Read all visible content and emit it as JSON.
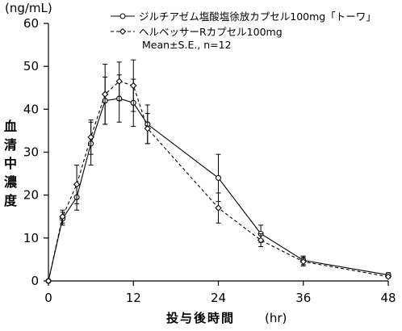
{
  "chart_data": {
    "type": "line",
    "y_unit": "(ng/mL)",
    "ylabel_chars": [
      "血",
      "清",
      "中",
      "濃",
      "度"
    ],
    "xlabel": "投与後時間",
    "x_unit": "(hr)",
    "xlim": [
      0,
      48
    ],
    "ylim": [
      0,
      60
    ],
    "x_ticks": [
      0,
      12,
      24,
      36,
      48
    ],
    "y_ticks": [
      0,
      10,
      20,
      30,
      40,
      50,
      60
    ],
    "annotation": "Mean±S.E., n=12",
    "series": [
      {
        "name": "ジルチアゼム塩酸塩徐放カプセル100mg「トーワ」",
        "style": "solid",
        "marker": "circle",
        "color": "#000000",
        "points": [
          {
            "x": 0,
            "y": 0,
            "err": 0
          },
          {
            "x": 2,
            "y": 14.5,
            "err": 1.5
          },
          {
            "x": 4,
            "y": 19.5,
            "err": 3.0
          },
          {
            "x": 6,
            "y": 32.0,
            "err": 5.0
          },
          {
            "x": 8,
            "y": 42.0,
            "err": 5.5
          },
          {
            "x": 10,
            "y": 42.5,
            "err": 5.5
          },
          {
            "x": 12,
            "y": 41.5,
            "err": 5.5
          },
          {
            "x": 14,
            "y": 36.5,
            "err": 4.5
          },
          {
            "x": 24,
            "y": 24.0,
            "err": 5.5
          },
          {
            "x": 30,
            "y": 11.0,
            "err": 2.0
          },
          {
            "x": 36,
            "y": 4.8,
            "err": 1.0
          },
          {
            "x": 48,
            "y": 1.4,
            "err": 0.5
          }
        ]
      },
      {
        "name": "ヘルベッサーRカプセル100mg",
        "style": "dashed",
        "marker": "diamond",
        "color": "#000000",
        "points": [
          {
            "x": 0,
            "y": 0,
            "err": 0
          },
          {
            "x": 2,
            "y": 15.0,
            "err": 1.5
          },
          {
            "x": 4,
            "y": 22.5,
            "err": 4.5
          },
          {
            "x": 6,
            "y": 33.5,
            "err": 4.0
          },
          {
            "x": 8,
            "y": 43.5,
            "err": 7.0
          },
          {
            "x": 10,
            "y": 46.5,
            "err": 4.5
          },
          {
            "x": 12,
            "y": 45.5,
            "err": 6.0
          },
          {
            "x": 14,
            "y": 35.5,
            "err": 3.5
          },
          {
            "x": 24,
            "y": 17.0,
            "err": 3.5
          },
          {
            "x": 30,
            "y": 9.5,
            "err": 1.5
          },
          {
            "x": 36,
            "y": 4.5,
            "err": 1.0
          },
          {
            "x": 48,
            "y": 1.0,
            "err": 0.3
          }
        ]
      }
    ]
  }
}
